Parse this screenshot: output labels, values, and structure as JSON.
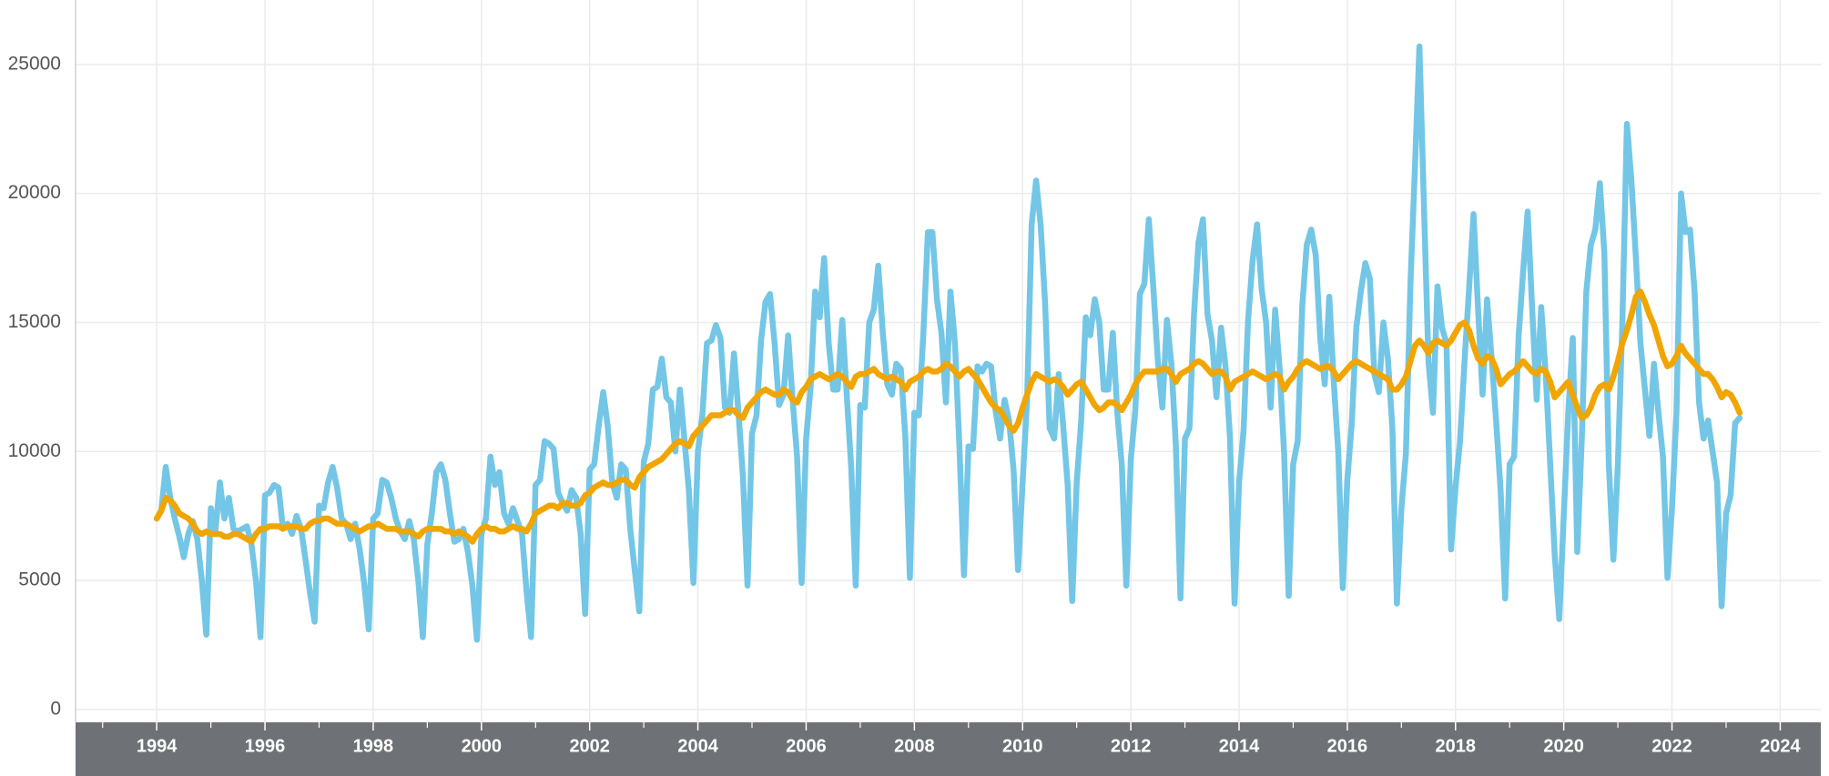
{
  "chart_data": {
    "type": "line",
    "xlim": [
      1992.5,
      2024.75
    ],
    "xticks": [
      1994,
      1996,
      1998,
      2000,
      2002,
      2004,
      2006,
      2008,
      2010,
      2012,
      2014,
      2016,
      2018,
      2020,
      2022,
      2024
    ],
    "xminorticks": [
      1993,
      1995,
      1997,
      1999,
      2001,
      2003,
      2005,
      2007,
      2009,
      2011,
      2013,
      2015,
      2017,
      2019,
      2021,
      2023
    ],
    "ylim": [
      -500,
      27500
    ],
    "yticks": [
      0,
      5000,
      10000,
      15000,
      20000,
      25000
    ],
    "grid": true,
    "x": [
      1994,
      1994.083,
      1994.167,
      1994.25,
      1994.333,
      1994.417,
      1994.5,
      1994.583,
      1994.667,
      1994.75,
      1994.833,
      1994.917,
      1995,
      1995.083,
      1995.167,
      1995.25,
      1995.333,
      1995.417,
      1995.5,
      1995.583,
      1995.667,
      1995.75,
      1995.833,
      1995.917,
      1996,
      1996.083,
      1996.167,
      1996.25,
      1996.333,
      1996.417,
      1996.5,
      1996.583,
      1996.667,
      1996.75,
      1996.833,
      1996.917,
      1997,
      1997.083,
      1997.167,
      1997.25,
      1997.333,
      1997.417,
      1997.5,
      1997.583,
      1997.667,
      1997.75,
      1997.833,
      1997.917,
      1998,
      1998.083,
      1998.167,
      1998.25,
      1998.333,
      1998.417,
      1998.5,
      1998.583,
      1998.667,
      1998.75,
      1998.833,
      1998.917,
      1999,
      1999.083,
      1999.167,
      1999.25,
      1999.333,
      1999.417,
      1999.5,
      1999.583,
      1999.667,
      1999.75,
      1999.833,
      1999.917,
      2000,
      2000.083,
      2000.167,
      2000.25,
      2000.333,
      2000.417,
      2000.5,
      2000.583,
      2000.667,
      2000.75,
      2000.833,
      2000.917,
      2001,
      2001.083,
      2001.167,
      2001.25,
      2001.333,
      2001.417,
      2001.5,
      2001.583,
      2001.667,
      2001.75,
      2001.833,
      2001.917,
      2002,
      2002.083,
      2002.167,
      2002.25,
      2002.333,
      2002.417,
      2002.5,
      2002.583,
      2002.667,
      2002.75,
      2002.833,
      2002.917,
      2003,
      2003.083,
      2003.167,
      2003.25,
      2003.333,
      2003.417,
      2003.5,
      2003.583,
      2003.667,
      2003.75,
      2003.833,
      2003.917,
      2004,
      2004.083,
      2004.167,
      2004.25,
      2004.333,
      2004.417,
      2004.5,
      2004.583,
      2004.667,
      2004.75,
      2004.833,
      2004.917,
      2005,
      2005.083,
      2005.167,
      2005.25,
      2005.333,
      2005.417,
      2005.5,
      2005.583,
      2005.667,
      2005.75,
      2005.833,
      2005.917,
      2006,
      2006.083,
      2006.167,
      2006.25,
      2006.333,
      2006.417,
      2006.5,
      2006.583,
      2006.667,
      2006.75,
      2006.833,
      2006.917,
      2007,
      2007.083,
      2007.167,
      2007.25,
      2007.333,
      2007.417,
      2007.5,
      2007.583,
      2007.667,
      2007.75,
      2007.833,
      2007.917,
      2008,
      2008.083,
      2008.167,
      2008.25,
      2008.333,
      2008.417,
      2008.5,
      2008.583,
      2008.667,
      2008.75,
      2008.833,
      2008.917,
      2009,
      2009.083,
      2009.167,
      2009.25,
      2009.333,
      2009.417,
      2009.5,
      2009.583,
      2009.667,
      2009.75,
      2009.833,
      2009.917,
      2010,
      2010.083,
      2010.167,
      2010.25,
      2010.333,
      2010.417,
      2010.5,
      2010.583,
      2010.667,
      2010.75,
      2010.833,
      2010.917,
      2011,
      2011.083,
      2011.167,
      2011.25,
      2011.333,
      2011.417,
      2011.5,
      2011.583,
      2011.667,
      2011.75,
      2011.833,
      2011.917,
      2012,
      2012.083,
      2012.167,
      2012.25,
      2012.333,
      2012.417,
      2012.5,
      2012.583,
      2012.667,
      2012.75,
      2012.833,
      2012.917,
      2013,
      2013.083,
      2013.167,
      2013.25,
      2013.333,
      2013.417,
      2013.5,
      2013.583,
      2013.667,
      2013.75,
      2013.833,
      2013.917,
      2014,
      2014.083,
      2014.167,
      2014.25,
      2014.333,
      2014.417,
      2014.5,
      2014.583,
      2014.667,
      2014.75,
      2014.833,
      2014.917,
      2015,
      2015.083,
      2015.167,
      2015.25,
      2015.333,
      2015.417,
      2015.5,
      2015.583,
      2015.667,
      2015.75,
      2015.833,
      2015.917,
      2016,
      2016.083,
      2016.167,
      2016.25,
      2016.333,
      2016.417,
      2016.5,
      2016.583,
      2016.667,
      2016.75,
      2016.833,
      2016.917,
      2017,
      2017.083,
      2017.167,
      2017.25,
      2017.333,
      2017.417,
      2017.5,
      2017.583,
      2017.667,
      2017.75,
      2017.833,
      2017.917,
      2018,
      2018.083,
      2018.167,
      2018.25,
      2018.333,
      2018.417,
      2018.5,
      2018.583,
      2018.667,
      2018.75,
      2018.833,
      2018.917,
      2019,
      2019.083,
      2019.167,
      2019.25,
      2019.333,
      2019.417,
      2019.5,
      2019.583,
      2019.667,
      2019.75,
      2019.833,
      2019.917,
      2020,
      2020.083,
      2020.167,
      2020.25,
      2020.333,
      2020.417,
      2020.5,
      2020.583,
      2020.667,
      2020.75,
      2020.833,
      2020.917,
      2021,
      2021.083,
      2021.167,
      2021.25,
      2021.333,
      2021.417,
      2021.5,
      2021.583,
      2021.667,
      2021.75,
      2021.833,
      2021.917,
      2022,
      2022.083,
      2022.167,
      2022.25,
      2022.333,
      2022.417,
      2022.5,
      2022.583,
      2022.667,
      2022.75,
      2022.833,
      2022.917,
      2023,
      2023.083,
      2023.167,
      2023.25
    ],
    "series": [
      {
        "color": "#73c6e6",
        "values": [
          7400,
          7700,
          9400,
          8200,
          7400,
          6700,
          5900,
          6800,
          7300,
          6600,
          5000,
          2900,
          7800,
          6900,
          8800,
          7400,
          8200,
          7000,
          6900,
          7000,
          7100,
          6400,
          5000,
          2800,
          8300,
          8400,
          8700,
          8600,
          7000,
          7200,
          6800,
          7500,
          7000,
          5800,
          4500,
          3400,
          7900,
          7800,
          8800,
          9400,
          8600,
          7400,
          7200,
          6600,
          7200,
          6200,
          4900,
          3100,
          7400,
          7600,
          8900,
          8800,
          8200,
          7400,
          6900,
          6600,
          7300,
          6600,
          5000,
          2800,
          6400,
          7600,
          9200,
          9500,
          8900,
          7600,
          6500,
          6600,
          7000,
          6100,
          4800,
          2700,
          6800,
          7400,
          9800,
          8700,
          9200,
          7600,
          7200,
          7800,
          7300,
          6800,
          4600,
          2800,
          8700,
          8900,
          10400,
          10300,
          10100,
          8400,
          8000,
          7700,
          8500,
          8200,
          6800,
          3700,
          9300,
          9500,
          11000,
          12300,
          11000,
          8800,
          8200,
          9500,
          9300,
          7000,
          5400,
          3800,
          9600,
          10300,
          12400,
          12500,
          13600,
          12100,
          11900,
          10000,
          12400,
          10500,
          8500,
          4900,
          10000,
          11400,
          14200,
          14300,
          14900,
          14400,
          11700,
          11500,
          13800,
          11500,
          9000,
          4800,
          10700,
          11400,
          14300,
          15800,
          16100,
          14200,
          11800,
          12200,
          14500,
          12000,
          9800,
          4900,
          10500,
          12500,
          16200,
          15200,
          17500,
          14200,
          12400,
          12400,
          15100,
          12200,
          9400,
          4800,
          11800,
          11700,
          15000,
          15500,
          17200,
          14600,
          12600,
          12200,
          13400,
          13200,
          10600,
          5100,
          11500,
          11400,
          14600,
          18500,
          18500,
          15900,
          14600,
          11900,
          16200,
          14200,
          10200,
          5200,
          10200,
          10100,
          13300,
          13100,
          13400,
          13300,
          11600,
          10500,
          12000,
          11200,
          9300,
          5400,
          8800,
          12000,
          18800,
          20500,
          18800,
          15700,
          10900,
          10500,
          13000,
          11000,
          8700,
          4200,
          8800,
          11200,
          15200,
          14500,
          15900,
          15000,
          12400,
          12400,
          14600,
          11500,
          9500,
          4800,
          9700,
          11600,
          16100,
          16500,
          19000,
          16300,
          13500,
          11700,
          15100,
          13400,
          10200,
          4300,
          10500,
          10900,
          15300,
          18100,
          19000,
          15300,
          14300,
          12100,
          14800,
          13300,
          10500,
          4100,
          8800,
          10800,
          15100,
          17400,
          18800,
          16300,
          15000,
          11700,
          15500,
          13200,
          9900,
          4400,
          9500,
          10400,
          15600,
          18000,
          18600,
          17600,
          14400,
          12600,
          16000,
          12700,
          10000,
          4700,
          8900,
          11100,
          14800,
          16200,
          17300,
          16700,
          13000,
          12300,
          15000,
          13600,
          10900,
          4100,
          7800,
          9900,
          16500,
          21000,
          25700,
          19500,
          13500,
          11500,
          16400,
          14800,
          14200,
          6200,
          8600,
          10400,
          13500,
          16300,
          19200,
          15500,
          12200,
          15900,
          13600,
          11200,
          8500,
          4300,
          9500,
          9800,
          14500,
          17000,
          19300,
          15500,
          12000,
          15600,
          13000,
          9500,
          6000,
          3500,
          7500,
          11500,
          14400,
          6100,
          10500,
          16200,
          18000,
          18600,
          20400,
          17700,
          9500,
          5800,
          9500,
          15000,
          22700,
          20500,
          17500,
          14200,
          12400,
          10600,
          13400,
          11500,
          9800,
          5100,
          7800,
          11500,
          20000,
          18500,
          18600,
          16200,
          11900,
          10500,
          11200,
          10000,
          8800,
          4000,
          7600,
          8300,
          11100,
          11300
        ]
      },
      {
        "color": "#f0a500",
        "values": [
          7400,
          7700,
          8200,
          8100,
          7900,
          7600,
          7500,
          7400,
          7200,
          6900,
          6800,
          6900,
          6800,
          6800,
          6800,
          6700,
          6700,
          6800,
          6800,
          6700,
          6600,
          6500,
          6800,
          7000,
          7000,
          7100,
          7100,
          7100,
          7000,
          7100,
          7100,
          7100,
          7000,
          7000,
          7200,
          7300,
          7300,
          7400,
          7400,
          7300,
          7200,
          7200,
          7200,
          7100,
          7000,
          6900,
          7000,
          7100,
          7100,
          7200,
          7100,
          7000,
          7000,
          7000,
          6900,
          6900,
          6900,
          6800,
          6700,
          6900,
          7000,
          7000,
          7000,
          7000,
          6900,
          6900,
          6800,
          6900,
          6800,
          6700,
          6500,
          6800,
          7000,
          7100,
          7000,
          7000,
          6900,
          6900,
          7000,
          7100,
          7000,
          7000,
          6900,
          7200,
          7600,
          7700,
          7800,
          7900,
          7900,
          7800,
          8000,
          8000,
          7900,
          7900,
          8000,
          8300,
          8400,
          8600,
          8700,
          8800,
          8700,
          8700,
          8800,
          8900,
          8900,
          8700,
          8600,
          9000,
          9200,
          9400,
          9500,
          9600,
          9700,
          9900,
          10100,
          10300,
          10400,
          10300,
          10200,
          10600,
          10800,
          11000,
          11200,
          11400,
          11400,
          11400,
          11500,
          11600,
          11600,
          11400,
          11300,
          11700,
          11900,
          12100,
          12300,
          12400,
          12300,
          12200,
          12200,
          12400,
          12300,
          12000,
          11900,
          12300,
          12500,
          12800,
          12900,
          13000,
          12900,
          12800,
          12900,
          13000,
          12900,
          12700,
          12500,
          12900,
          13000,
          13000,
          13100,
          13200,
          13000,
          12900,
          12800,
          12900,
          12800,
          12700,
          12400,
          12700,
          12800,
          12900,
          13100,
          13200,
          13100,
          13100,
          13200,
          13400,
          13300,
          13100,
          12900,
          13100,
          13200,
          13000,
          12800,
          12500,
          12200,
          11900,
          11700,
          11600,
          11300,
          11000,
          10800,
          11100,
          11700,
          12200,
          12700,
          13000,
          12900,
          12800,
          12700,
          12800,
          12700,
          12500,
          12200,
          12400,
          12600,
          12700,
          12400,
          12100,
          11800,
          11600,
          11700,
          11900,
          11900,
          11800,
          11600,
          11900,
          12200,
          12600,
          12900,
          13100,
          13100,
          13100,
          13100,
          13200,
          13200,
          13000,
          12700,
          13000,
          13100,
          13200,
          13400,
          13500,
          13400,
          13200,
          13000,
          13100,
          13100,
          12900,
          12400,
          12700,
          12800,
          12900,
          13000,
          13100,
          13000,
          12900,
          12800,
          12900,
          13000,
          12900,
          12400,
          12700,
          12900,
          13200,
          13400,
          13500,
          13400,
          13300,
          13200,
          13300,
          13300,
          13100,
          12800,
          13000,
          13200,
          13400,
          13500,
          13400,
          13300,
          13200,
          13100,
          13000,
          12900,
          12800,
          12400,
          12400,
          12600,
          12900,
          13500,
          14100,
          14300,
          14100,
          13800,
          14200,
          14300,
          14200,
          14100,
          14300,
          14600,
          14900,
          15000,
          14700,
          14100,
          13600,
          13400,
          13700,
          13600,
          13200,
          12600,
          12800,
          13000,
          13100,
          13300,
          13500,
          13300,
          13100,
          13000,
          13200,
          13100,
          12700,
          12100,
          12300,
          12500,
          12700,
          12200,
          11700,
          11300,
          11400,
          11700,
          12200,
          12500,
          12600,
          12400,
          12900,
          13500,
          14200,
          14700,
          15300,
          16000,
          16200,
          15800,
          15300,
          14900,
          14300,
          13700,
          13300,
          13400,
          13700,
          14100,
          13800,
          13600,
          13400,
          13200,
          13000,
          13000,
          12800,
          12500,
          12100,
          12300,
          12200,
          11900,
          11500
        ]
      }
    ]
  }
}
